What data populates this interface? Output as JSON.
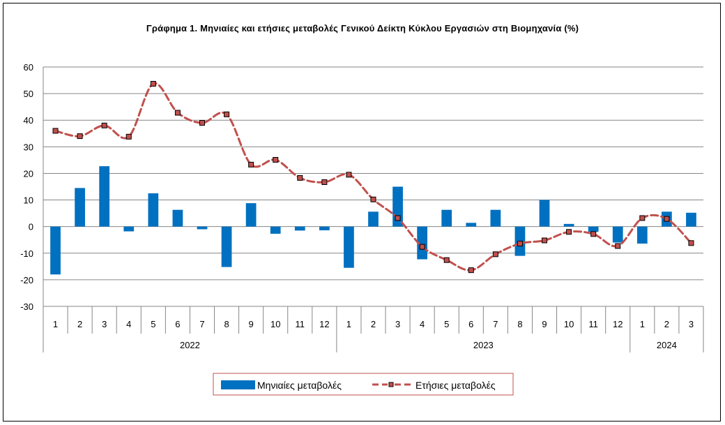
{
  "chart_data": {
    "type": "bar+line",
    "title": "Γράφημα 1.  Μηνιαίες και ετήσιες μεταβολές  Γενικού Δείκτη Κύκλου Εργασιών στη Βιομηχανία  (%)",
    "categories": [
      "1",
      "2",
      "3",
      "4",
      "5",
      "6",
      "7",
      "8",
      "9",
      "10",
      "11",
      "12",
      "1",
      "2",
      "3",
      "4",
      "5",
      "6",
      "7",
      "8",
      "9",
      "10",
      "11",
      "12",
      "1",
      "2",
      "3"
    ],
    "year_groups": [
      {
        "label": "2022",
        "start": 0,
        "count": 12
      },
      {
        "label": "2023",
        "start": 12,
        "count": 12
      },
      {
        "label": "2024",
        "start": 24,
        "count": 3
      }
    ],
    "ylim": [
      -30,
      60
    ],
    "yticks": [
      -30,
      -20,
      -10,
      0,
      10,
      20,
      30,
      40,
      50,
      60
    ],
    "grid": true,
    "legend_position": "bottom",
    "series": [
      {
        "name": "Μηνιαίες μεταβολές",
        "kind": "bar",
        "color": "#0070C0",
        "values": [
          -18.0,
          14.5,
          22.7,
          -1.8,
          12.5,
          6.3,
          -1.0,
          -15.2,
          8.8,
          -2.7,
          -1.5,
          -1.4,
          -15.5,
          5.6,
          15.0,
          -12.3,
          6.3,
          1.4,
          6.3,
          -11.0,
          10.0,
          1.0,
          -2.0,
          -6.0,
          -6.4,
          5.6,
          5.2
        ]
      },
      {
        "name": "Ετήσιες μεταβολές",
        "kind": "line",
        "color": "#C0504D",
        "values": [
          36.0,
          34.0,
          38.0,
          33.8,
          53.7,
          42.8,
          39.0,
          42.2,
          23.3,
          25.1,
          18.3,
          16.7,
          19.5,
          10.2,
          3.2,
          -7.6,
          -12.6,
          -16.4,
          -10.4,
          -6.4,
          -5.2,
          -2.0,
          -2.8,
          -7.3,
          3.2,
          2.9,
          -6.2
        ]
      }
    ]
  }
}
